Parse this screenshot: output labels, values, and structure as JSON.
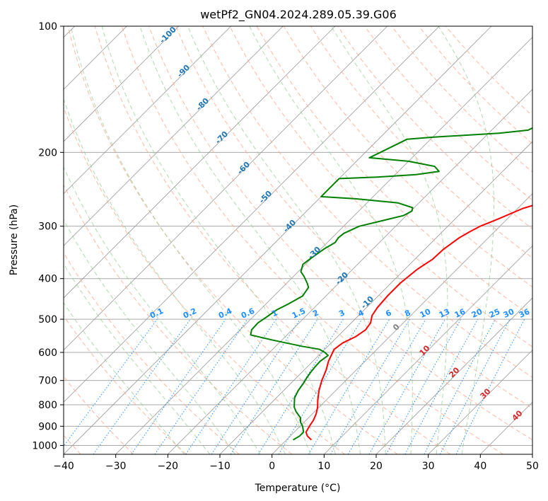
{
  "chart_data": {
    "type": "line",
    "title": "wetPf2_GN04.2024.289.05.39.G06",
    "xlabel": "Temperature (°C)",
    "ylabel": "Pressure (hPa)",
    "xlim": [
      -40,
      50
    ],
    "ylim": [
      1050,
      100
    ],
    "y_scale": "log",
    "x_ticks": [
      -40,
      -30,
      -20,
      -10,
      0,
      10,
      20,
      30,
      40,
      50
    ],
    "y_ticks": [
      100,
      200,
      300,
      400,
      500,
      600,
      700,
      800,
      900,
      1000
    ],
    "grid": true,
    "series": [
      {
        "color": "#ff0000",
        "points": [
          [
            4.8,
            970
          ],
          [
            3.3,
            950
          ],
          [
            2.3,
            930
          ],
          [
            1.8,
            900
          ],
          [
            1.4,
            870
          ],
          [
            0.7,
            840
          ],
          [
            -0.3,
            810
          ],
          [
            -1.6,
            780
          ],
          [
            -3.2,
            740
          ],
          [
            -4.6,
            700
          ],
          [
            -5.8,
            660
          ],
          [
            -7,
            630
          ],
          [
            -7.6,
            610
          ],
          [
            -8.2,
            590
          ],
          [
            -7.8,
            570
          ],
          [
            -6.5,
            550
          ],
          [
            -5.9,
            530
          ],
          [
            -6.3,
            510
          ],
          [
            -7.4,
            490
          ],
          [
            -7.9,
            470
          ],
          [
            -8.2,
            440
          ],
          [
            -8.2,
            410
          ],
          [
            -7.6,
            380
          ],
          [
            -6.6,
            360
          ],
          [
            -6.4,
            340
          ],
          [
            -6,
            330
          ],
          [
            -5.6,
            320
          ],
          [
            -4.8,
            310
          ],
          [
            -3.8,
            300
          ],
          [
            -2,
            290
          ],
          [
            1,
            272
          ],
          [
            4,
            262
          ],
          [
            7,
            251
          ],
          [
            10,
            239
          ],
          [
            12.7,
            225
          ],
          [
            15.5,
            212
          ],
          [
            18.5,
            197
          ],
          [
            20.3,
            187
          ],
          [
            22.5,
            178
          ],
          [
            26,
            165
          ],
          [
            28.5,
            157
          ],
          [
            32.5,
            142
          ],
          [
            35,
            133
          ],
          [
            38,
            124
          ],
          [
            40,
            117
          ],
          [
            43,
            110
          ],
          [
            47.2,
            104
          ],
          [
            50,
            100
          ]
        ]
      },
      {
        "color": "#008000",
        "points": [
          [
            1.3,
            970
          ],
          [
            1.8,
            950
          ],
          [
            1.8,
            930
          ],
          [
            0.5,
            900
          ],
          [
            -0.7,
            880
          ],
          [
            -1.5,
            860
          ],
          [
            -3.6,
            830
          ],
          [
            -4.8,
            810
          ],
          [
            -6.5,
            770
          ],
          [
            -7.2,
            740
          ],
          [
            -7.6,
            710
          ],
          [
            -8,
            690
          ],
          [
            -8.3,
            670
          ],
          [
            -8.5,
            650
          ],
          [
            -8.6,
            630
          ],
          [
            -8.2,
            610
          ],
          [
            -9.4,
            600
          ],
          [
            -11,
            590
          ],
          [
            -15,
            580
          ],
          [
            -22,
            560
          ],
          [
            -27,
            545
          ],
          [
            -27.8,
            530
          ],
          [
            -27.9,
            510
          ],
          [
            -27.4,
            495
          ],
          [
            -26.8,
            475
          ],
          [
            -25.7,
            460
          ],
          [
            -24.5,
            440
          ],
          [
            -25,
            420
          ],
          [
            -26.1,
            410
          ],
          [
            -28,
            395
          ],
          [
            -29.5,
            385
          ],
          [
            -30.5,
            370
          ],
          [
            -30.2,
            360
          ],
          [
            -29.4,
            340
          ],
          [
            -28.5,
            328
          ],
          [
            -28.8,
            320
          ],
          [
            -28.6,
            312
          ],
          [
            -27,
            300
          ],
          [
            -23.2,
            290
          ],
          [
            -20.6,
            283
          ],
          [
            -19.8,
            276
          ],
          [
            -20.3,
            271
          ],
          [
            -24,
            264
          ],
          [
            -33,
            258
          ],
          [
            -40,
            255
          ],
          [
            -40,
            231
          ],
          [
            -33,
            229
          ],
          [
            -26,
            226
          ],
          [
            -22.2,
            222
          ],
          [
            -24,
            216
          ],
          [
            -30,
            210
          ],
          [
            -38.2,
            206
          ],
          [
            -38,
            205
          ],
          [
            -34.5,
            186
          ],
          [
            -30,
            184
          ],
          [
            -18,
            180
          ],
          [
            -13,
            177
          ],
          [
            -12,
            172
          ],
          [
            -10.6,
            165
          ],
          [
            -10,
            158
          ],
          [
            -9.6,
            152
          ],
          [
            -9.3,
            135
          ],
          [
            -8.3,
            130
          ],
          [
            -7.5,
            126
          ],
          [
            -6.5,
            123
          ],
          [
            -4.5,
            118
          ],
          [
            -2,
            112
          ],
          [
            0,
            106
          ],
          [
            1.1,
            100
          ]
        ]
      }
    ],
    "background_lines": {
      "isotherms_deg_c": [
        -100,
        -90,
        -80,
        -70,
        -60,
        -50,
        -40,
        -30,
        -20,
        -10,
        0,
        10,
        20,
        30,
        40,
        50
      ],
      "dry_adiabats_theta_c": [
        -60,
        -50,
        -40,
        -30,
        -20,
        -10,
        0,
        10,
        20,
        30,
        40,
        50,
        60,
        70,
        80,
        90,
        100,
        110,
        120,
        130,
        140,
        150,
        160
      ],
      "moist_adiabats_start_c": [
        -20,
        -15,
        -10,
        -5,
        0,
        5,
        10,
        15,
        20,
        25,
        30,
        35
      ],
      "mixing_ratios_g_kg": [
        0.1,
        0.2,
        0.4,
        0.6,
        1,
        1.5,
        2,
        3,
        4,
        6,
        8,
        10,
        13,
        16,
        20,
        25,
        30,
        36
      ]
    },
    "annotations": {
      "isotherm_labels": [
        "-100",
        "-90",
        "-80",
        "-70",
        "-60",
        "-50",
        "-40",
        "-30",
        "-20",
        "-10"
      ],
      "mixing_ratio_labels": [
        "0.1",
        "0.2",
        "0.4",
        "0.6",
        "1",
        "1.5",
        "2",
        "3",
        "4",
        "6",
        "8",
        "10",
        "13",
        "16",
        "20",
        "25",
        "30",
        "36"
      ],
      "moist_labels": [
        [
          "0",
          "#808080"
        ],
        [
          "10",
          "#d62728"
        ],
        [
          "20",
          "#d62728"
        ],
        [
          "30",
          "#d62728"
        ],
        [
          "40",
          "#d62728"
        ]
      ]
    },
    "colors": {
      "isotherm_label": "#1f77b4",
      "mixing_ratio": "#1e90ff",
      "dry_adiabat": "#ff9f80",
      "moist_adiabat": "#8fc98f",
      "grid": "#aaaaaa",
      "isotherm_line": "#999999"
    }
  }
}
